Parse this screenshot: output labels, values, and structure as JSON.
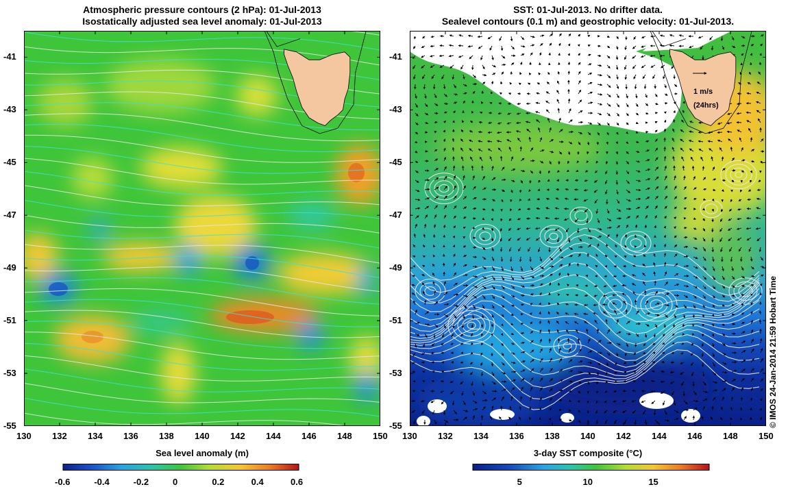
{
  "left_panel": {
    "title_line1": "Atmospheric pressure contours (2 hPa): 01-Jul-2013",
    "title_line2": "Isostatically adjusted sea level anomaly: 01-Jul-2013",
    "colorbar_label": "Sea level anomaly (m)",
    "colorbar_ticks": [
      "-0.6",
      "-0.4",
      "-0.2",
      "0",
      "0.2",
      "0.4",
      "0.6"
    ],
    "colorbar_range": [
      -0.6,
      0.6
    ]
  },
  "right_panel": {
    "title_line1": "SST: 01-Jul-2013. No drifter data.",
    "title_line2": "Sealevel contours (0.1 m) and geostrophic velocity: 01-Jul-2013.",
    "colorbar_label": "3-day SST composite (°C)",
    "colorbar_ticks": [
      "5",
      "10",
      "15"
    ],
    "colorbar_range": [
      1,
      19
    ],
    "scale_arrow_label_1": "1 m/s",
    "scale_arrow_label_2": "(24hrs)"
  },
  "credit": "© IMOS 24-Jan-2014 21:59 Hobart Time",
  "axes": {
    "lon_ticks": [
      "130",
      "132",
      "134",
      "136",
      "138",
      "140",
      "142",
      "144",
      "146",
      "148",
      "150"
    ],
    "lat_ticks": [
      "-41",
      "-43",
      "-45",
      "-47",
      "-49",
      "-51",
      "-53",
      "-55"
    ],
    "lon_range": [
      130,
      150
    ],
    "lat_range": [
      -55,
      -40
    ]
  },
  "colors": {
    "land": "#f5c7a0",
    "pressure_contour": "#e8e8e8",
    "sla_contour": "#40e0d0",
    "coast": "#000000"
  }
}
